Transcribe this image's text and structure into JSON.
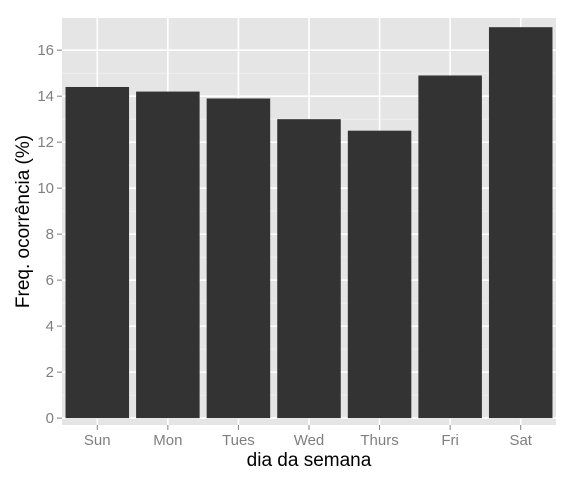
{
  "chart_data": {
    "type": "bar",
    "categories": [
      "Sun",
      "Mon",
      "Tues",
      "Wed",
      "Thurs",
      "Fri",
      "Sat"
    ],
    "values": [
      14.4,
      14.2,
      13.9,
      13.0,
      12.5,
      14.9,
      17.0
    ],
    "title": "",
    "xlabel": "dia da semana",
    "ylabel": "Freq. ocorrência (%)",
    "ylim": [
      -0.3,
      17.4
    ],
    "yticks": [
      "0",
      "2",
      "4",
      "6",
      "8",
      "10",
      "12",
      "14",
      "16"
    ],
    "grid": true,
    "legend": "none",
    "colors": {
      "panel": "#e5e5e5",
      "grid_major": "#ffffff",
      "grid_minor": "#f2f2f2",
      "bar": "#333333",
      "tick_text": "#7f7f7f",
      "title_text": "#000000"
    }
  }
}
